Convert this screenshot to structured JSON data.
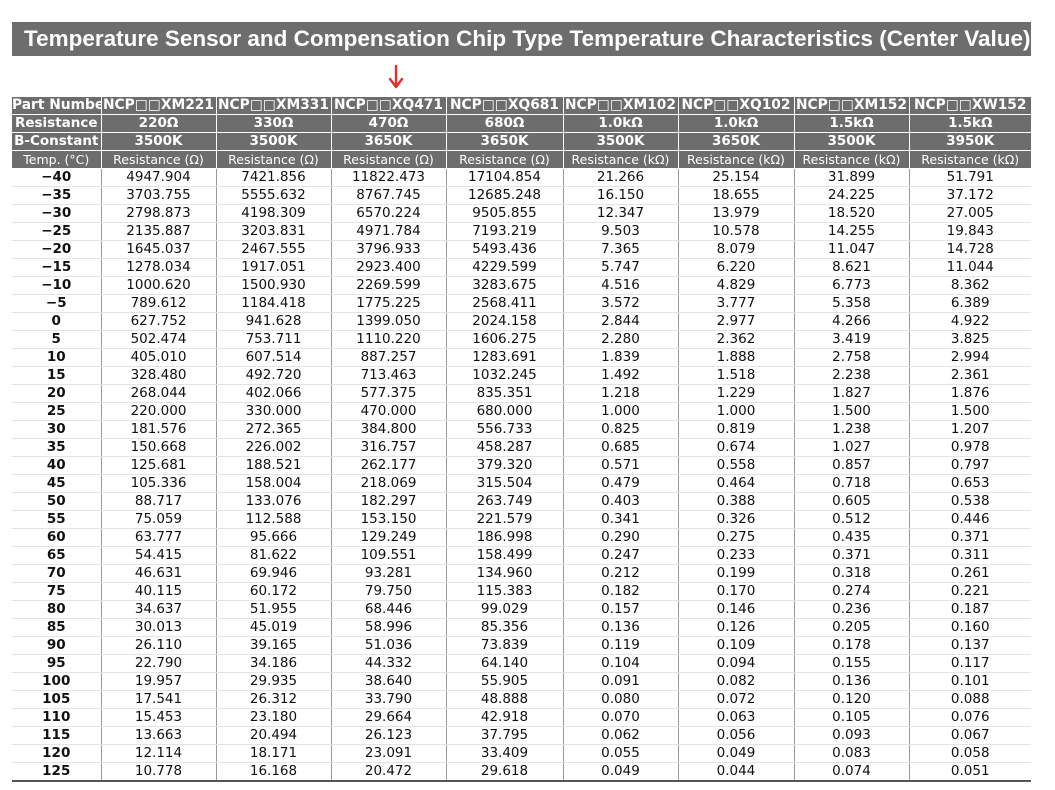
{
  "title": "Temperature Sensor and Compensation Chip Type Temperature Characteristics (Center Value)",
  "arrow": {
    "color": "#e0302a",
    "icon": "down-arrow-icon"
  },
  "colors": {
    "header_bg": "#6d6d6d",
    "header_text": "#ffffff"
  },
  "table": {
    "row_labels": {
      "part_number": "Part Number",
      "resistance": "Resistance",
      "b_constant": "B-Constant",
      "temp": "Temp. (°C)"
    },
    "part_numbers": [
      "NCP□□XM221",
      "NCP□□XM331",
      "NCP□□XQ471",
      "NCP□□XQ681",
      "NCP□□XM102",
      "NCP□□XQ102",
      "NCP□□XM152",
      "NCP□□XW152"
    ],
    "resistances": [
      "220Ω",
      "330Ω",
      "470Ω",
      "680Ω",
      "1.0kΩ",
      "1.0kΩ",
      "1.5kΩ",
      "1.5kΩ"
    ],
    "b_constants": [
      "3500K",
      "3500K",
      "3650K",
      "3650K",
      "3500K",
      "3650K",
      "3500K",
      "3950K"
    ],
    "units": [
      "Resistance (Ω)",
      "Resistance (Ω)",
      "Resistance (Ω)",
      "Resistance (Ω)",
      "Resistance (kΩ)",
      "Resistance (kΩ)",
      "Resistance (kΩ)",
      "Resistance (kΩ)"
    ],
    "rows": [
      [
        "−40",
        "4947.904",
        "7421.856",
        "11822.473",
        "17104.854",
        "21.266",
        "25.154",
        "31.899",
        "51.791"
      ],
      [
        "−35",
        "3703.755",
        "5555.632",
        "8767.745",
        "12685.248",
        "16.150",
        "18.655",
        "24.225",
        "37.172"
      ],
      [
        "−30",
        "2798.873",
        "4198.309",
        "6570.224",
        "9505.855",
        "12.347",
        "13.979",
        "18.520",
        "27.005"
      ],
      [
        "−25",
        "2135.887",
        "3203.831",
        "4971.784",
        "7193.219",
        "9.503",
        "10.578",
        "14.255",
        "19.843"
      ],
      [
        "−20",
        "1645.037",
        "2467.555",
        "3796.933",
        "5493.436",
        "7.365",
        "8.079",
        "11.047",
        "14.728"
      ],
      [
        "−15",
        "1278.034",
        "1917.051",
        "2923.400",
        "4229.599",
        "5.747",
        "6.220",
        "8.621",
        "11.044"
      ],
      [
        "−10",
        "1000.620",
        "1500.930",
        "2269.599",
        "3283.675",
        "4.516",
        "4.829",
        "6.773",
        "8.362"
      ],
      [
        "−5",
        "789.612",
        "1184.418",
        "1775.225",
        "2568.411",
        "3.572",
        "3.777",
        "5.358",
        "6.389"
      ],
      [
        "0",
        "627.752",
        "941.628",
        "1399.050",
        "2024.158",
        "2.844",
        "2.977",
        "4.266",
        "4.922"
      ],
      [
        "5",
        "502.474",
        "753.711",
        "1110.220",
        "1606.275",
        "2.280",
        "2.362",
        "3.419",
        "3.825"
      ],
      [
        "10",
        "405.010",
        "607.514",
        "887.257",
        "1283.691",
        "1.839",
        "1.888",
        "2.758",
        "2.994"
      ],
      [
        "15",
        "328.480",
        "492.720",
        "713.463",
        "1032.245",
        "1.492",
        "1.518",
        "2.238",
        "2.361"
      ],
      [
        "20",
        "268.044",
        "402.066",
        "577.375",
        "835.351",
        "1.218",
        "1.229",
        "1.827",
        "1.876"
      ],
      [
        "25",
        "220.000",
        "330.000",
        "470.000",
        "680.000",
        "1.000",
        "1.000",
        "1.500",
        "1.500"
      ],
      [
        "30",
        "181.576",
        "272.365",
        "384.800",
        "556.733",
        "0.825",
        "0.819",
        "1.238",
        "1.207"
      ],
      [
        "35",
        "150.668",
        "226.002",
        "316.757",
        "458.287",
        "0.685",
        "0.674",
        "1.027",
        "0.978"
      ],
      [
        "40",
        "125.681",
        "188.521",
        "262.177",
        "379.320",
        "0.571",
        "0.558",
        "0.857",
        "0.797"
      ],
      [
        "45",
        "105.336",
        "158.004",
        "218.069",
        "315.504",
        "0.479",
        "0.464",
        "0.718",
        "0.653"
      ],
      [
        "50",
        "88.717",
        "133.076",
        "182.297",
        "263.749",
        "0.403",
        "0.388",
        "0.605",
        "0.538"
      ],
      [
        "55",
        "75.059",
        "112.588",
        "153.150",
        "221.579",
        "0.341",
        "0.326",
        "0.512",
        "0.446"
      ],
      [
        "60",
        "63.777",
        "95.666",
        "129.249",
        "186.998",
        "0.290",
        "0.275",
        "0.435",
        "0.371"
      ],
      [
        "65",
        "54.415",
        "81.622",
        "109.551",
        "158.499",
        "0.247",
        "0.233",
        "0.371",
        "0.311"
      ],
      [
        "70",
        "46.631",
        "69.946",
        "93.281",
        "134.960",
        "0.212",
        "0.199",
        "0.318",
        "0.261"
      ],
      [
        "75",
        "40.115",
        "60.172",
        "79.750",
        "115.383",
        "0.182",
        "0.170",
        "0.274",
        "0.221"
      ],
      [
        "80",
        "34.637",
        "51.955",
        "68.446",
        "99.029",
        "0.157",
        "0.146",
        "0.236",
        "0.187"
      ],
      [
        "85",
        "30.013",
        "45.019",
        "58.996",
        "85.356",
        "0.136",
        "0.126",
        "0.205",
        "0.160"
      ],
      [
        "90",
        "26.110",
        "39.165",
        "51.036",
        "73.839",
        "0.119",
        "0.109",
        "0.178",
        "0.137"
      ],
      [
        "95",
        "22.790",
        "34.186",
        "44.332",
        "64.140",
        "0.104",
        "0.094",
        "0.155",
        "0.117"
      ],
      [
        "100",
        "19.957",
        "29.935",
        "38.640",
        "55.905",
        "0.091",
        "0.082",
        "0.136",
        "0.101"
      ],
      [
        "105",
        "17.541",
        "26.312",
        "33.790",
        "48.888",
        "0.080",
        "0.072",
        "0.120",
        "0.088"
      ],
      [
        "110",
        "15.453",
        "23.180",
        "29.664",
        "42.918",
        "0.070",
        "0.063",
        "0.105",
        "0.076"
      ],
      [
        "115",
        "13.663",
        "20.494",
        "26.123",
        "37.795",
        "0.062",
        "0.056",
        "0.093",
        "0.067"
      ],
      [
        "120",
        "12.114",
        "18.171",
        "23.091",
        "33.409",
        "0.055",
        "0.049",
        "0.083",
        "0.058"
      ],
      [
        "125",
        "10.778",
        "16.168",
        "20.472",
        "29.618",
        "0.049",
        "0.044",
        "0.074",
        "0.051"
      ]
    ]
  }
}
